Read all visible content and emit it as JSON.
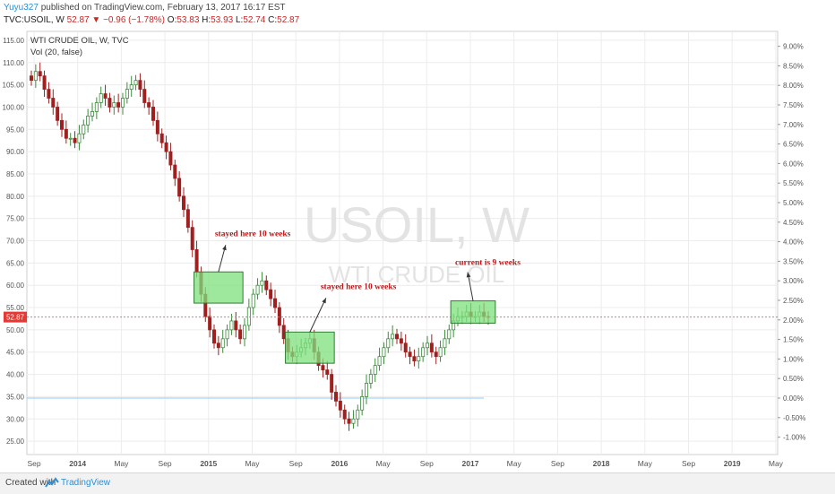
{
  "header": {
    "user": "Yuyu327",
    "published_text": " published on TradingView.com, February 13, 2017 16:17 EST",
    "symbol": "TVC:USOIL, W",
    "last": "52.87",
    "change": "−0.96 (−1.78%)",
    "open_label": "O:",
    "open": "53.83",
    "high_label": "H:",
    "high": "53.93",
    "low_label": "L:",
    "low": "52.74",
    "close_label": "C:",
    "close": "52.87"
  },
  "legend": {
    "title": "WTI CRUDE OIL, W, TVC",
    "vol": "Vol (20, false)"
  },
  "watermark": {
    "big": "USOIL, W",
    "small": "WTI CRUDE OIL"
  },
  "colors": {
    "up": "#3c8c3c",
    "down": "#a02020",
    "box_fill": "#7de07d",
    "box_stroke": "#2e7d32",
    "annotation": "#b71c1c",
    "price_line": "#e57373",
    "volume_line": "#90caf9",
    "grid": "#ececec"
  },
  "chart_data": {
    "type": "candlestick",
    "ylim": [
      22,
      117
    ],
    "y_ticks": [
      "115.00",
      "110.00",
      "105.00",
      "100.00",
      "95.00",
      "90.00",
      "85.00",
      "80.00",
      "75.00",
      "70.00",
      "65.00",
      "60.00",
      "55.00",
      "50.00",
      "45.00",
      "40.00",
      "35.00",
      "30.00",
      "25.00"
    ],
    "right_ticks": [
      "9.00%",
      "8.50%",
      "8.00%",
      "7.50%",
      "7.00%",
      "6.50%",
      "6.00%",
      "5.50%",
      "5.00%",
      "4.50%",
      "4.00%",
      "3.50%",
      "3.00%",
      "2.50%",
      "2.00%",
      "1.50%",
      "1.00%",
      "0.50%",
      "0.00%",
      "-0.50%",
      "-1.00%"
    ],
    "x_ticks": [
      "Sep",
      "2014",
      "May",
      "Sep",
      "2015",
      "May",
      "Sep",
      "2016",
      "May",
      "Sep",
      "2017",
      "May",
      "Sep",
      "2018",
      "May",
      "Sep",
      "2019",
      "May"
    ],
    "current_price": 52.87,
    "current_price_label": "52.87",
    "volume_zero_level": 0.0,
    "close_series": [
      106,
      108,
      107,
      104,
      102,
      100,
      97,
      95,
      93,
      93,
      92,
      94,
      96,
      98,
      99,
      101,
      103,
      102,
      100,
      101,
      100,
      102,
      104,
      105,
      106,
      104,
      101,
      100,
      97,
      94,
      92,
      90,
      87,
      84,
      80,
      77,
      73,
      68,
      63,
      58,
      53,
      50,
      47,
      46,
      48,
      50,
      52,
      50,
      48,
      51,
      55,
      58,
      60,
      61,
      59,
      57,
      55,
      51,
      48,
      45,
      44,
      45,
      46,
      47,
      48,
      45,
      42,
      41,
      40,
      36,
      34,
      32,
      30,
      29,
      30,
      32,
      35,
      38,
      40,
      42,
      44,
      46,
      48,
      49,
      48,
      47,
      45,
      44,
      43,
      44,
      46,
      47,
      45,
      44,
      46,
      48,
      50,
      52,
      53,
      53,
      54,
      53,
      53,
      54,
      53,
      52.87
    ],
    "annotations": [
      {
        "text": "stayed here 10 weeks",
        "box": {
          "from": 38,
          "to": 48,
          "low": 56,
          "high": 63
        },
        "arrow_to": "above"
      },
      {
        "text": "stayed here 10 weeks",
        "box": {
          "from": 59,
          "to": 69,
          "low": 42.5,
          "high": 49.5
        },
        "arrow_to": "above"
      },
      {
        "text": "current is 9 weeks",
        "box": {
          "from": 97,
          "to": 106,
          "low": 51.5,
          "high": 56.5
        },
        "arrow_to": "above"
      }
    ]
  },
  "footer": {
    "created": "Created with",
    "brand": "TradingView"
  }
}
